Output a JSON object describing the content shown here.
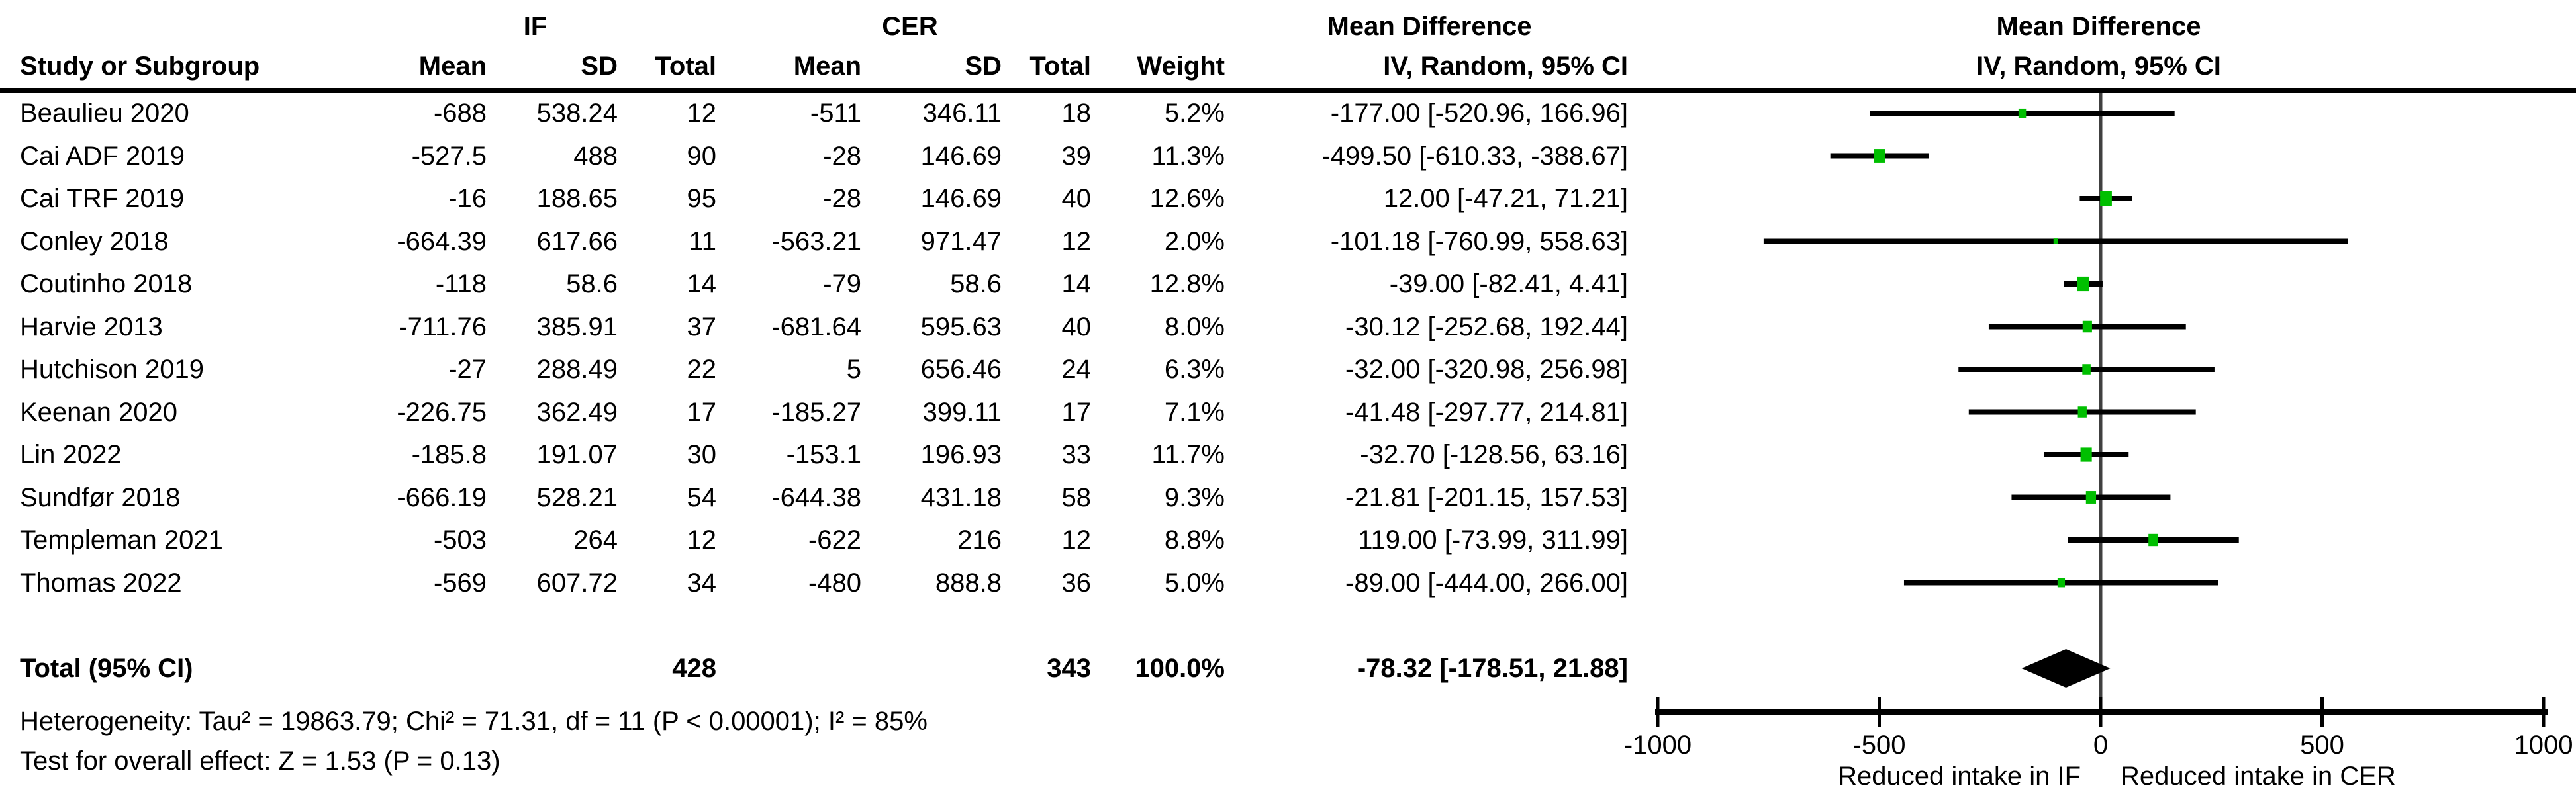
{
  "table": {
    "group1_label": "IF",
    "group2_label": "CER",
    "md_label": "Mean Difference",
    "col_headers": {
      "study": "Study or Subgroup",
      "mean1": "Mean",
      "sd1": "SD",
      "total1": "Total",
      "mean2": "Mean",
      "sd2": "SD",
      "total2": "Total",
      "weight": "Weight",
      "method": "IV, Random, 95% CI"
    },
    "studies": [
      {
        "name": "Beaulieu 2020",
        "mean1": "-688",
        "sd1": "538.24",
        "total1": "12",
        "mean2": "-511",
        "sd2": "346.11",
        "total2": "18",
        "weight": "5.2%",
        "ci": "-177.00 [-520.96, 166.96]"
      },
      {
        "name": "Cai ADF 2019",
        "mean1": "-527.5",
        "sd1": "488",
        "total1": "90",
        "mean2": "-28",
        "sd2": "146.69",
        "total2": "39",
        "weight": "11.3%",
        "ci": "-499.50 [-610.33, -388.67]"
      },
      {
        "name": "Cai TRF 2019",
        "mean1": "-16",
        "sd1": "188.65",
        "total1": "95",
        "mean2": "-28",
        "sd2": "146.69",
        "total2": "40",
        "weight": "12.6%",
        "ci": "12.00 [-47.21, 71.21]"
      },
      {
        "name": "Conley 2018",
        "mean1": "-664.39",
        "sd1": "617.66",
        "total1": "11",
        "mean2": "-563.21",
        "sd2": "971.47",
        "total2": "12",
        "weight": "2.0%",
        "ci": "-101.18 [-760.99, 558.63]"
      },
      {
        "name": "Coutinho 2018",
        "mean1": "-118",
        "sd1": "58.6",
        "total1": "14",
        "mean2": "-79",
        "sd2": "58.6",
        "total2": "14",
        "weight": "12.8%",
        "ci": "-39.00 [-82.41, 4.41]"
      },
      {
        "name": "Harvie 2013",
        "mean1": "-711.76",
        "sd1": "385.91",
        "total1": "37",
        "mean2": "-681.64",
        "sd2": "595.63",
        "total2": "40",
        "weight": "8.0%",
        "ci": "-30.12 [-252.68, 192.44]"
      },
      {
        "name": "Hutchison 2019",
        "mean1": "-27",
        "sd1": "288.49",
        "total1": "22",
        "mean2": "5",
        "sd2": "656.46",
        "total2": "24",
        "weight": "6.3%",
        "ci": "-32.00 [-320.98, 256.98]"
      },
      {
        "name": "Keenan 2020",
        "mean1": "-226.75",
        "sd1": "362.49",
        "total1": "17",
        "mean2": "-185.27",
        "sd2": "399.11",
        "total2": "17",
        "weight": "7.1%",
        "ci": "-41.48 [-297.77, 214.81]"
      },
      {
        "name": "Lin 2022",
        "mean1": "-185.8",
        "sd1": "191.07",
        "total1": "30",
        "mean2": "-153.1",
        "sd2": "196.93",
        "total2": "33",
        "weight": "11.7%",
        "ci": "-32.70 [-128.56, 63.16]"
      },
      {
        "name": "Sundfør 2018",
        "mean1": "-666.19",
        "sd1": "528.21",
        "total1": "54",
        "mean2": "-644.38",
        "sd2": "431.18",
        "total2": "58",
        "weight": "9.3%",
        "ci": "-21.81 [-201.15, 157.53]"
      },
      {
        "name": "Templeman 2021",
        "mean1": "-503",
        "sd1": "264",
        "total1": "12",
        "mean2": "-622",
        "sd2": "216",
        "total2": "12",
        "weight": "8.8%",
        "ci": "119.00 [-73.99, 311.99]"
      },
      {
        "name": "Thomas 2022",
        "mean1": "-569",
        "sd1": "607.72",
        "total1": "34",
        "mean2": "-480",
        "sd2": "888.8",
        "total2": "36",
        "weight": "5.0%",
        "ci": "-89.00 [-444.00, 266.00]"
      }
    ],
    "total_row": {
      "label": "Total (95% CI)",
      "total1": "428",
      "total2": "343",
      "weight": "100.0%",
      "ci": "-78.32 [-178.51, 21.88]"
    },
    "footer": {
      "heterogeneity": "Heterogeneity: Tau² = 19863.79; Chi² = 71.31, df = 11 (P < 0.00001); I² = 85%",
      "overall_effect": "Test for overall effect: Z = 1.53 (P = 0.13)"
    }
  },
  "plot": {
    "header1": "Mean Difference",
    "header2": "IV, Random, 95% CI"
  },
  "chart_data": {
    "type": "forest",
    "title": "Mean Difference, IV, Random, 95% CI — IF vs CER",
    "axis": {
      "min": -1000,
      "max": 1000,
      "ticks": [
        -1000,
        -500,
        0,
        500,
        1000
      ],
      "left_label": "Reduced intake in IF",
      "right_label": "Reduced intake in CER"
    },
    "colors": {
      "marker": "#00bf00",
      "ci_line": "#000000",
      "zero_line": "#404040",
      "diamond": "#000000",
      "axis": "#000000"
    },
    "studies": [
      {
        "name": "Beaulieu 2020",
        "est": -177.0,
        "lo": -520.96,
        "hi": 166.96,
        "weight_pct": 5.2
      },
      {
        "name": "Cai ADF 2019",
        "est": -499.5,
        "lo": -610.33,
        "hi": -388.67,
        "weight_pct": 11.3
      },
      {
        "name": "Cai TRF 2019",
        "est": 12.0,
        "lo": -47.21,
        "hi": 71.21,
        "weight_pct": 12.6
      },
      {
        "name": "Conley 2018",
        "est": -101.18,
        "lo": -760.99,
        "hi": 558.63,
        "weight_pct": 2.0
      },
      {
        "name": "Coutinho 2018",
        "est": -39.0,
        "lo": -82.41,
        "hi": 4.41,
        "weight_pct": 12.8
      },
      {
        "name": "Harvie 2013",
        "est": -30.12,
        "lo": -252.68,
        "hi": 192.44,
        "weight_pct": 8.0
      },
      {
        "name": "Hutchison 2019",
        "est": -32.0,
        "lo": -320.98,
        "hi": 256.98,
        "weight_pct": 6.3
      },
      {
        "name": "Keenan 2020",
        "est": -41.48,
        "lo": -297.77,
        "hi": 214.81,
        "weight_pct": 7.1
      },
      {
        "name": "Lin 2022",
        "est": -32.7,
        "lo": -128.56,
        "hi": 63.16,
        "weight_pct": 11.7
      },
      {
        "name": "Sundfør 2018",
        "est": -21.81,
        "lo": -201.15,
        "hi": 157.53,
        "weight_pct": 9.3
      },
      {
        "name": "Templeman 2021",
        "est": 119.0,
        "lo": -73.99,
        "hi": 311.99,
        "weight_pct": 8.8
      },
      {
        "name": "Thomas 2022",
        "est": -89.0,
        "lo": -444.0,
        "hi": 266.0,
        "weight_pct": 5.0
      }
    ],
    "total": {
      "est": -78.32,
      "lo": -178.51,
      "hi": 21.88
    }
  }
}
